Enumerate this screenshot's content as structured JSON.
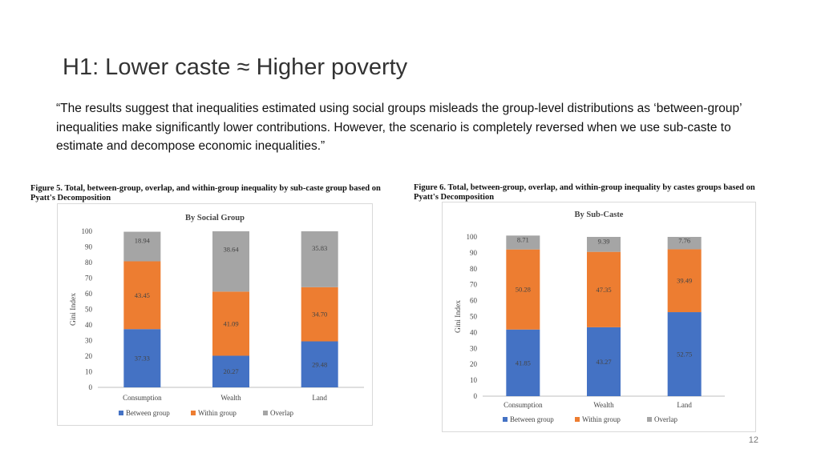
{
  "slide": {
    "title": "H1: Lower caste ≈ Higher poverty",
    "quote": "“The results suggest that inequalities estimated using social groups misleads the group-level distributions as ‘between-group’ inequalities make significantly lower contributions. However, the scenario is completely reversed when we use sub-caste to estimate and decompose economic inequalities.”",
    "page_number": "12"
  },
  "figures": [
    {
      "caption": "Figure 5.  Total, between-group, overlap, and within-group inequality by sub-caste group based on Pyatt's Decomposition"
    },
    {
      "caption": "Figure 6. Total, between-group, overlap, and within-group inequality by castes groups based on Pyatt's Decomposition"
    }
  ],
  "colors": {
    "between": "#4472c4",
    "within": "#ed7d31",
    "overlap": "#a5a5a5"
  },
  "chart_data": [
    {
      "type": "bar",
      "stacked": true,
      "title": "By Social Group",
      "ylabel": "Gini Index",
      "xlabel": "",
      "categories": [
        "Consumption",
        "Wealth",
        "Land"
      ],
      "series": [
        {
          "name": "Between group",
          "values": [
            37.33,
            20.27,
            29.48
          ],
          "labels": [
            "37.33",
            "20.27",
            "29.48"
          ]
        },
        {
          "name": "Within group",
          "values": [
            43.45,
            41.09,
            34.7
          ],
          "labels": [
            "43.45",
            "41.09",
            "34.70"
          ]
        },
        {
          "name": "Overlap",
          "values": [
            18.94,
            38.64,
            35.83
          ],
          "labels": [
            "18.94",
            "38.64",
            "35.83"
          ]
        }
      ],
      "ylim": [
        0,
        100
      ],
      "yticks": [
        0,
        10,
        20,
        30,
        40,
        50,
        60,
        70,
        80,
        90,
        100
      ],
      "legend": "bottom",
      "grid": false
    },
    {
      "type": "bar",
      "stacked": true,
      "title": "By Sub-Caste",
      "ylabel": "Gini Index",
      "xlabel": "",
      "categories": [
        "Consumption",
        "Wealth",
        "Land"
      ],
      "series": [
        {
          "name": "Between group",
          "values": [
            41.85,
            43.27,
            52.75
          ],
          "labels": [
            "41.85",
            "43.27",
            "52.75"
          ]
        },
        {
          "name": "Within group",
          "values": [
            50.28,
            47.35,
            39.49
          ],
          "labels": [
            "50.28",
            "47.35",
            "39.49"
          ]
        },
        {
          "name": "Overlap",
          "values": [
            8.71,
            9.39,
            7.76
          ],
          "labels": [
            "8.71",
            "9.39",
            "7.76"
          ]
        }
      ],
      "ylim": [
        0,
        100
      ],
      "yticks": [
        0,
        10,
        20,
        30,
        40,
        50,
        60,
        70,
        80,
        90,
        100
      ],
      "legend": "bottom",
      "grid": false
    }
  ]
}
